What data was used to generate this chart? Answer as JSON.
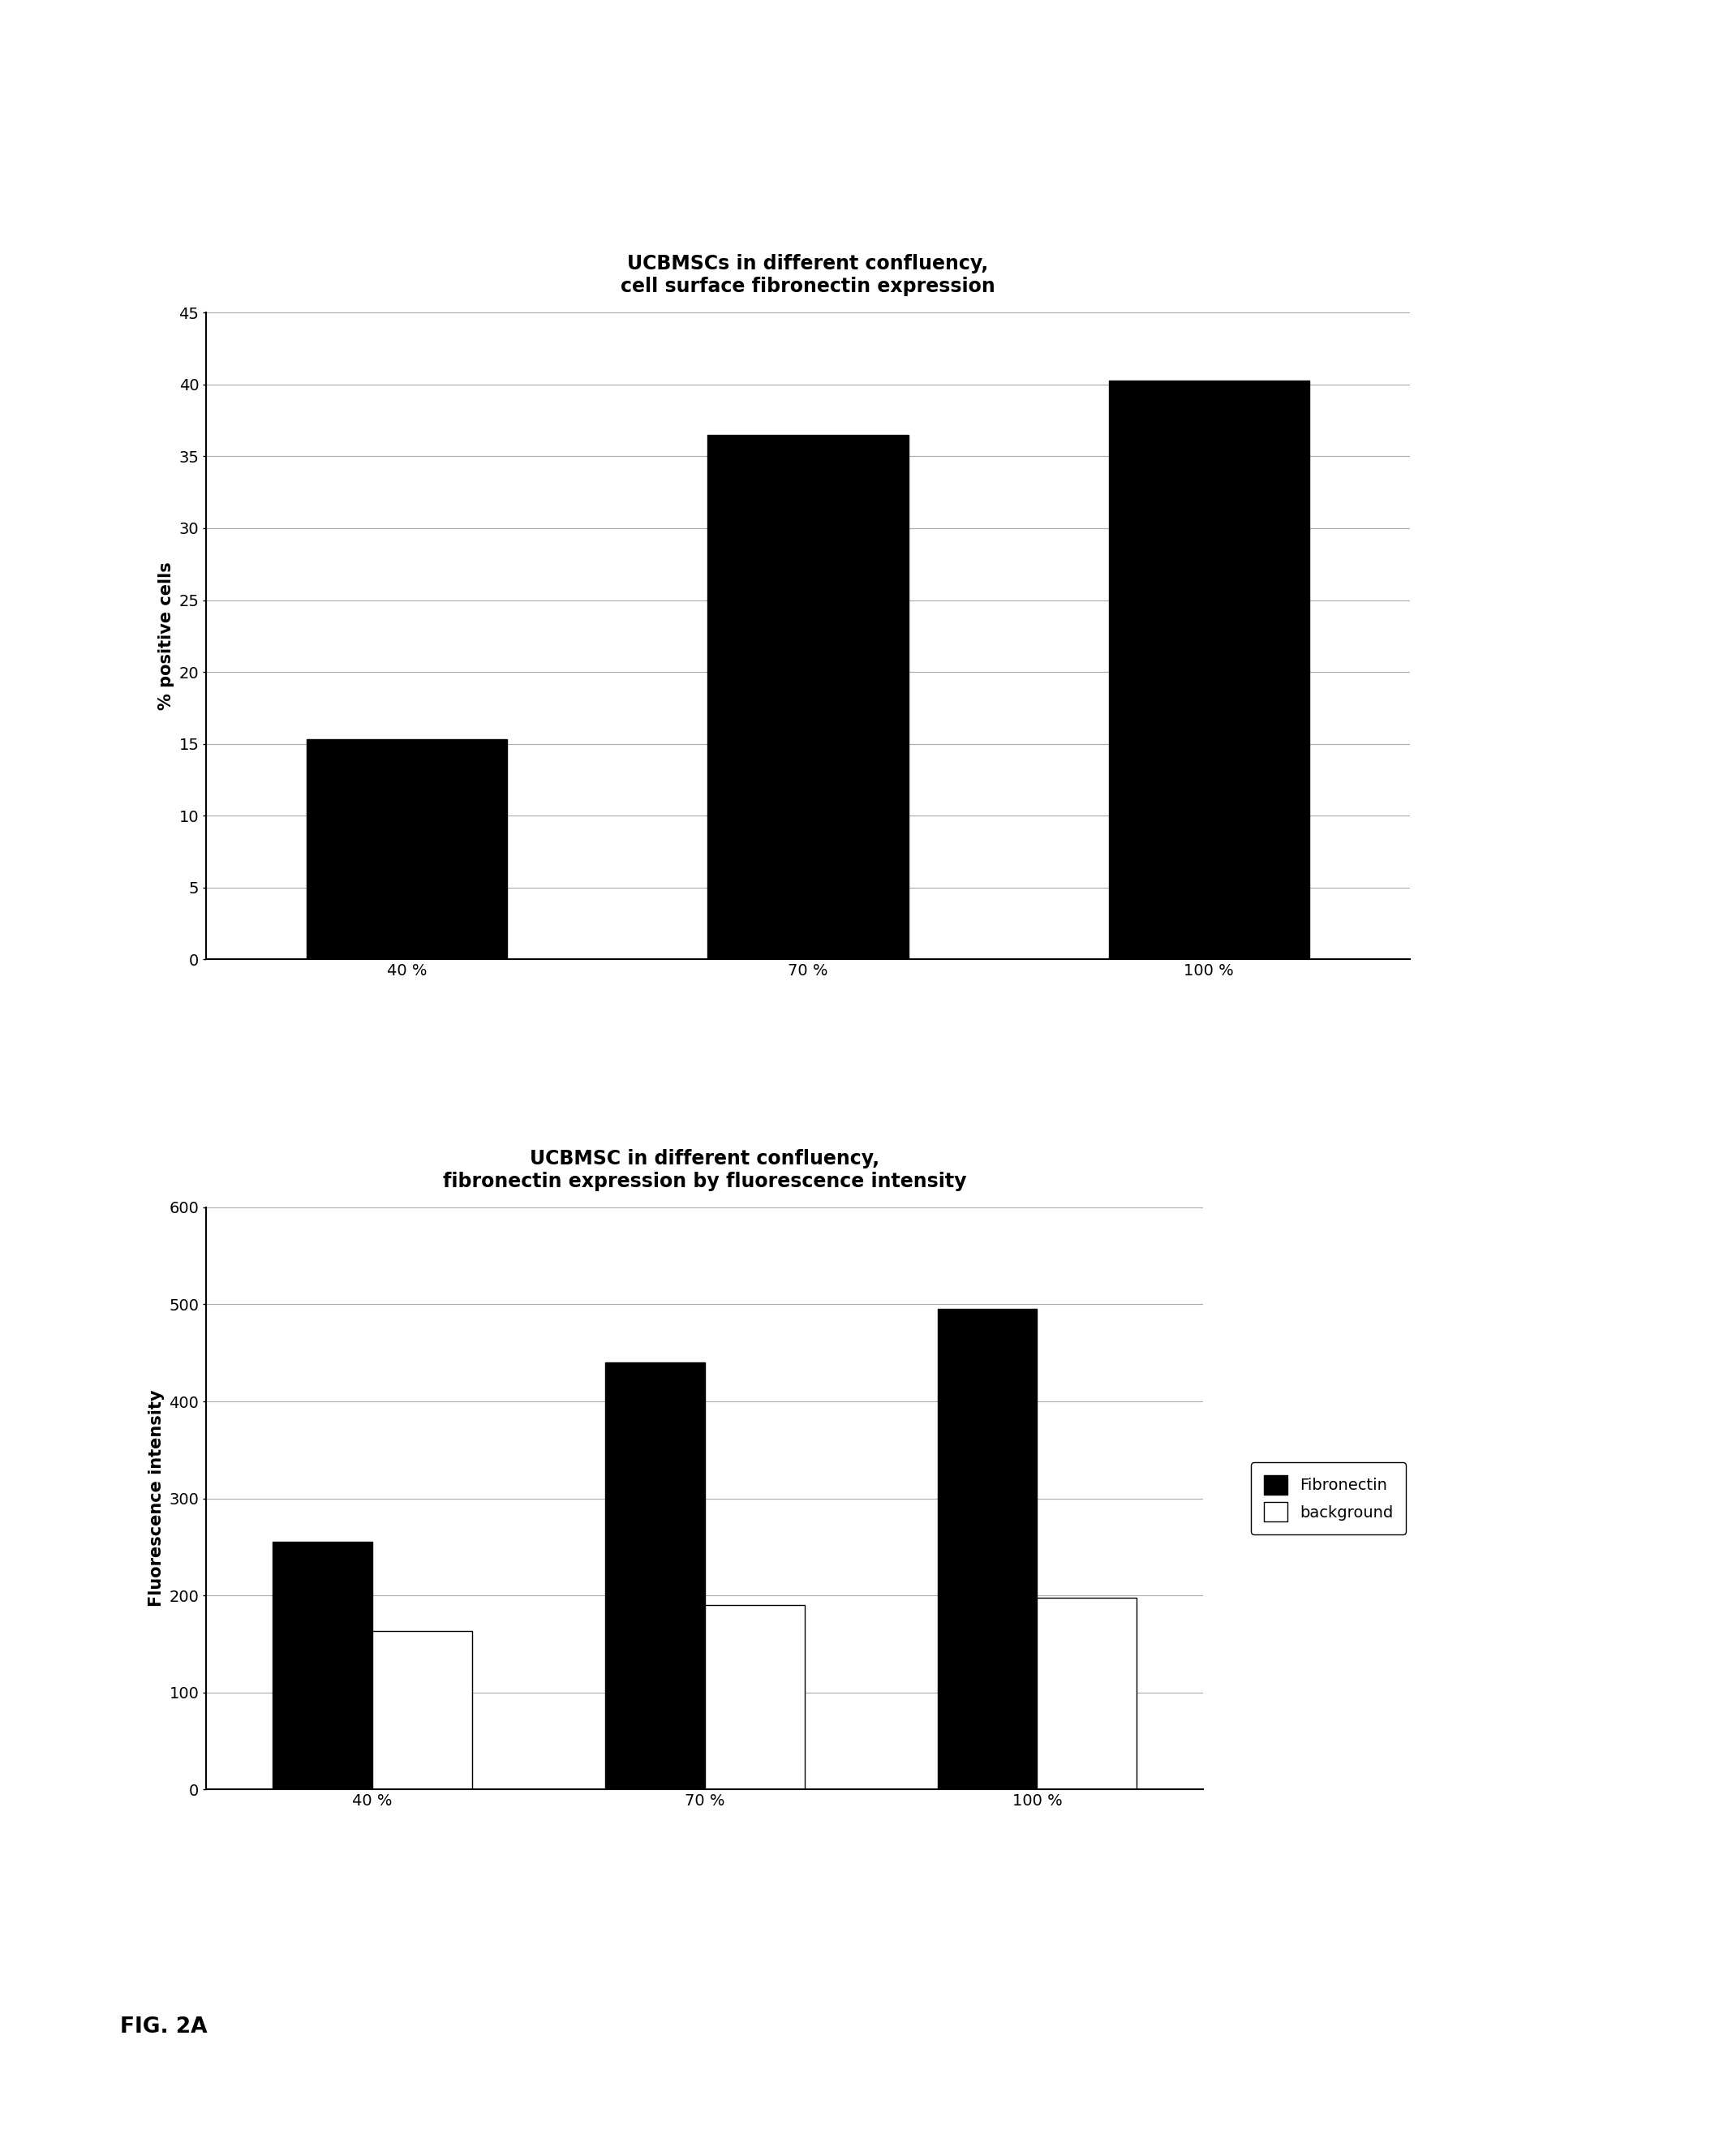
{
  "chart1": {
    "title_line1": "UCBMSCs in different confluency,",
    "title_line2": "cell surface fibronectin expression",
    "categories": [
      "40 %",
      "70 %",
      "100 %"
    ],
    "values": [
      15.3,
      36.5,
      40.3
    ],
    "bar_color": "#000000",
    "ylabel": "% positive cells",
    "ylim": [
      0,
      45
    ],
    "yticks": [
      0,
      5,
      10,
      15,
      20,
      25,
      30,
      35,
      40,
      45
    ]
  },
  "chart2": {
    "title_line1": "UCBMSC in different confluency,",
    "title_line2": "fibronectin expression by fluorescence intensity",
    "categories": [
      "40 %",
      "70 %",
      "100 %"
    ],
    "fibronectin_values": [
      255,
      440,
      495
    ],
    "background_values": [
      163,
      190,
      198
    ],
    "fibronectin_color": "#000000",
    "background_color": "#ffffff",
    "ylabel": "Fluorescence intensity",
    "ylim": [
      0,
      600
    ],
    "yticks": [
      0,
      100,
      200,
      300,
      400,
      500,
      600
    ],
    "legend_fibronectin": "Fibronectin",
    "legend_background": "background"
  },
  "fig_label": "FIG. 2A",
  "background_color": "#ffffff",
  "title_fontsize": 17,
  "axis_fontsize": 15,
  "tick_fontsize": 14
}
